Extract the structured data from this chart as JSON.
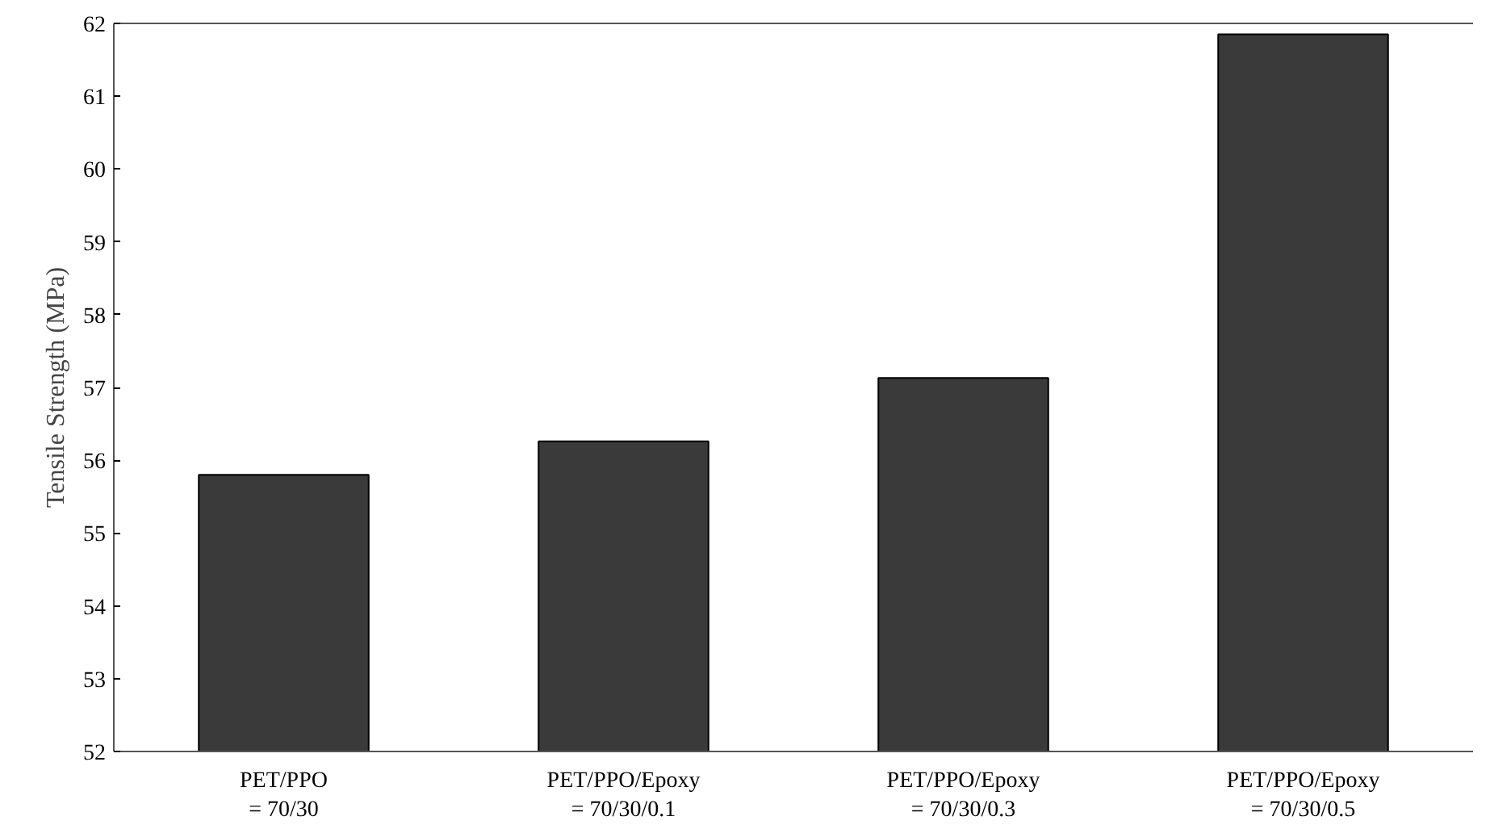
{
  "chart_data": {
    "type": "bar",
    "ylabel": "Tensile Strength (MPa)",
    "categories": [
      "PET/PPO\n= 70/30",
      "PET/PPO/Epoxy\n= 70/30/0.1",
      "PET/PPO/Epoxy\n= 70/30/0.3",
      "PET/PPO/Epoxy\n= 70/30/0.5"
    ],
    "values": [
      55.8,
      56.26,
      57.13,
      61.85
    ],
    "color": "#3a3a3a",
    "ylim": [
      52,
      62
    ],
    "yticks": [
      52,
      53,
      54,
      55,
      56,
      57,
      58,
      59,
      60,
      61,
      62
    ],
    "grid": false
  }
}
